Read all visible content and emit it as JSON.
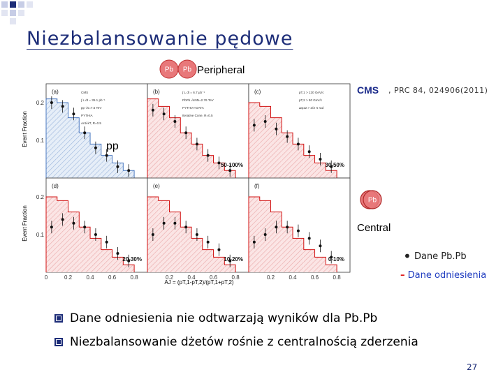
{
  "slide": {
    "title": "Niezbalansowanie pędowe",
    "nucleus_left": "Pb",
    "nucleus_right": "Pb",
    "peripheral_label": "Peripheral",
    "cms_label": "CMS",
    "reference": ", PRC 84, 024906(2011)",
    "pp_label": "pp",
    "central_nucleus": "Pb",
    "central_label": "Central",
    "legend_data": "Dane Pb.Pb",
    "legend_ref": "Dane odniesienia",
    "bullets": [
      "Dane odniesienia nie odtwarzają wyników dla Pb.Pb",
      "Niezbalansowanie dżetów rośnie z centralnością zderzenia"
    ],
    "page_number": "27",
    "colors": {
      "title": "#1d2d78",
      "cms": "#1a2a8a",
      "legend_ref": "#1f3cc0",
      "pythia_line": "#d11111"
    }
  },
  "chart_data": [
    {
      "type": "bar",
      "panel": "(a)",
      "centrality": "",
      "ylabel": "Event Fraction",
      "ylim": [
        0,
        0.25
      ],
      "annotations": [
        "CMS",
        "∫ L dt = 35.1 pb⁻¹",
        "pp √s=7.5 TeV",
        "PYTHIA",
        "Anti-kT, R=0.5"
      ],
      "yticks": [
        "0.2",
        "0.1"
      ],
      "x": [
        0.05,
        0.15,
        0.25,
        0.35,
        0.45,
        0.55,
        0.65,
        0.75
      ],
      "series": [
        {
          "name": "PYTHIA",
          "values": [
            0.21,
            0.2,
            0.16,
            0.12,
            0.09,
            0.06,
            0.04,
            0.02
          ]
        },
        {
          "name": "pp √s=7.5 TeV",
          "values": [
            0.2,
            0.19,
            0.17,
            0.12,
            0.08,
            0.06,
            0.03,
            0.02
          ]
        }
      ]
    },
    {
      "type": "bar",
      "panel": "(b)",
      "centrality": "50-100%",
      "ylim": [
        0,
        0.25
      ],
      "annotations": [
        "∫ L dt = 6.7 μb⁻¹",
        "PbPb √sNN=2.76 TeV",
        "PYTHIA+DATA",
        "Iterative Cone, R=0.5"
      ],
      "x": [
        0.05,
        0.15,
        0.25,
        0.35,
        0.45,
        0.55,
        0.65,
        0.75
      ],
      "series": [
        {
          "name": "PYTHIA+DATA",
          "values": [
            0.21,
            0.19,
            0.16,
            0.12,
            0.09,
            0.06,
            0.04,
            0.02
          ]
        },
        {
          "name": "PbPb √sNN=2.76 TeV",
          "values": [
            0.18,
            0.17,
            0.15,
            0.12,
            0.09,
            0.06,
            0.04,
            0.02
          ]
        }
      ]
    },
    {
      "type": "bar",
      "panel": "(c)",
      "centrality": "30-50%",
      "ylim": [
        0,
        0.25
      ],
      "annotations": [
        "pT,1 > 120 GeV/c",
        "pT,2 > 50 GeV/c",
        "Δφ12 > 2/3 π rad"
      ],
      "x": [
        0.05,
        0.15,
        0.25,
        0.35,
        0.45,
        0.55,
        0.65,
        0.75
      ],
      "series": [
        {
          "name": "PYTHIA+DATA",
          "values": [
            0.2,
            0.19,
            0.16,
            0.12,
            0.09,
            0.06,
            0.04,
            0.02
          ]
        },
        {
          "name": "PbPb",
          "values": [
            0.14,
            0.15,
            0.13,
            0.11,
            0.09,
            0.07,
            0.05,
            0.03
          ]
        }
      ]
    },
    {
      "type": "bar",
      "panel": "(d)",
      "centrality": "20-30%",
      "ylabel": "Event Fraction",
      "ylim": [
        0,
        0.25
      ],
      "yticks": [
        "0.2",
        "0.1"
      ],
      "xticks": [
        "0",
        "0.2",
        "0.4",
        "0.6",
        "0.8"
      ],
      "x": [
        0.05,
        0.15,
        0.25,
        0.35,
        0.45,
        0.55,
        0.65,
        0.75
      ],
      "series": [
        {
          "name": "PYTHIA+DATA",
          "values": [
            0.2,
            0.19,
            0.16,
            0.12,
            0.09,
            0.06,
            0.04,
            0.02
          ]
        },
        {
          "name": "PbPb",
          "values": [
            0.12,
            0.14,
            0.13,
            0.12,
            0.1,
            0.08,
            0.05,
            0.03
          ]
        }
      ]
    },
    {
      "type": "bar",
      "panel": "(e)",
      "centrality": "10-20%",
      "ylim": [
        0,
        0.25
      ],
      "xticks": [
        "0.2",
        "0.4",
        "0.6",
        "0.8"
      ],
      "xlabel": "AJ = (pT,1-pT,2)/(pT,1+pT,2)",
      "x": [
        0.05,
        0.15,
        0.25,
        0.35,
        0.45,
        0.55,
        0.65,
        0.75
      ],
      "series": [
        {
          "name": "PYTHIA+DATA",
          "values": [
            0.2,
            0.19,
            0.16,
            0.12,
            0.09,
            0.06,
            0.04,
            0.02
          ]
        },
        {
          "name": "PbPb",
          "values": [
            0.1,
            0.13,
            0.13,
            0.12,
            0.1,
            0.08,
            0.06,
            0.03
          ]
        }
      ]
    },
    {
      "type": "bar",
      "panel": "(f)",
      "centrality": "0-10%",
      "ylim": [
        0,
        0.25
      ],
      "xticks": [
        "0.2",
        "0.4",
        "0.6",
        "0.8"
      ],
      "x": [
        0.05,
        0.15,
        0.25,
        0.35,
        0.45,
        0.55,
        0.65,
        0.75
      ],
      "series": [
        {
          "name": "PYTHIA+DATA",
          "values": [
            0.2,
            0.19,
            0.16,
            0.12,
            0.09,
            0.06,
            0.04,
            0.02
          ]
        },
        {
          "name": "PbPb",
          "values": [
            0.08,
            0.1,
            0.12,
            0.12,
            0.11,
            0.09,
            0.07,
            0.04
          ]
        }
      ]
    }
  ]
}
